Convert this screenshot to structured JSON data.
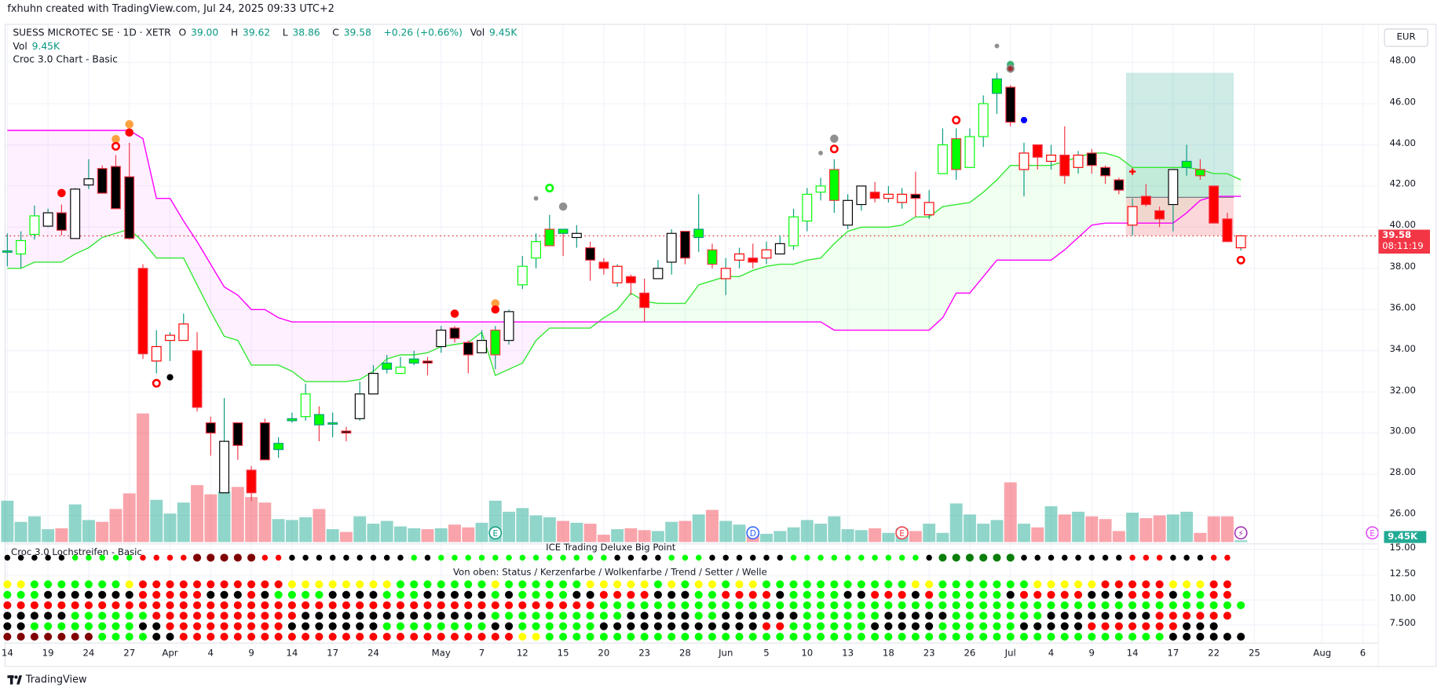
{
  "credit": "fxhuhn created with TradingView.com, Jul 24, 2025 09:33 UTC+2",
  "legend": {
    "symbol": "SUESS MICROTEC SE · 1D · XETR",
    "o_label": "O",
    "o": "39.00",
    "h_label": "H",
    "h": "39.62",
    "l_label": "L",
    "l": "38.86",
    "c_label": "C",
    "c": "39.58",
    "change": "+0.26 (+0.66%)",
    "vol_label": "Vol",
    "vol": "9.45K",
    "vol_row_label": "Vol",
    "vol_row_value": "9.45K",
    "indicator": "Croc 3.0 Chart - Basic"
  },
  "currency": "EUR",
  "current_price": {
    "price": "39.58",
    "countdown": "08:11:19",
    "value": 39.58
  },
  "volume_label": "9.45K",
  "price_axis": [
    "48.00",
    "46.00",
    "44.00",
    "42.00",
    "40.00",
    "38.00",
    "36.00",
    "34.00",
    "32.00",
    "30.00",
    "28.00",
    "26.00"
  ],
  "pane_axis": [
    "15.00",
    "12.50",
    "10.00",
    "7.500"
  ],
  "pane": {
    "title_left": "Croc 3.0 Lochstreifen - Basic",
    "title_center": "ICE Trading Deluxe Big Point",
    "subtitle": "Von oben: Status / Kerzenfarbe / Wolkenfarbe / Trend / Setter / Welle"
  },
  "footer": {
    "brand": "TradingView"
  },
  "colors": {
    "up": "#089981",
    "down": "#f23645",
    "lime": "#00ff00",
    "red": "#ff0000",
    "magenta": "#ff00ff",
    "yellow": "#ffff00",
    "darkred": "#800000",
    "darkgreen": "#0a7d0a",
    "black": "#000000"
  },
  "chart_data": {
    "type": "candlestick",
    "ylim": [
      25.5,
      49
    ],
    "x_labels": [
      {
        "label": "14",
        "i": 0
      },
      {
        "label": "19",
        "i": 3
      },
      {
        "label": "24",
        "i": 6
      },
      {
        "label": "27",
        "i": 9
      },
      {
        "label": "Apr",
        "i": 12
      },
      {
        "label": "4",
        "i": 15
      },
      {
        "label": "9",
        "i": 18
      },
      {
        "label": "14",
        "i": 21
      },
      {
        "label": "17",
        "i": 24
      },
      {
        "label": "24",
        "i": 27
      },
      {
        "label": "May",
        "i": 32
      },
      {
        "label": "7",
        "i": 35
      },
      {
        "label": "12",
        "i": 38
      },
      {
        "label": "15",
        "i": 41
      },
      {
        "label": "20",
        "i": 44
      },
      {
        "label": "23",
        "i": 47
      },
      {
        "label": "28",
        "i": 50
      },
      {
        "label": "Jun",
        "i": 53
      },
      {
        "label": "5",
        "i": 56
      },
      {
        "label": "10",
        "i": 59
      },
      {
        "label": "13",
        "i": 62
      },
      {
        "label": "18",
        "i": 65
      },
      {
        "label": "23",
        "i": 68
      },
      {
        "label": "26",
        "i": 71
      },
      {
        "label": "Jul",
        "i": 74
      },
      {
        "label": "4",
        "i": 77
      },
      {
        "label": "9",
        "i": 80
      },
      {
        "label": "14",
        "i": 83
      },
      {
        "label": "17",
        "i": 86
      },
      {
        "label": "22",
        "i": 89
      },
      {
        "label": "25",
        "i": 92
      },
      {
        "label": "Aug",
        "i": 97
      },
      {
        "label": "6",
        "i": 100
      }
    ],
    "candles_ohlc_style": [
      [
        38.8,
        39.7,
        38.1,
        38.85,
        "gf"
      ],
      [
        38.7,
        39.8,
        38.0,
        39.35,
        "gh"
      ],
      [
        39.65,
        41.05,
        39.4,
        40.55,
        "gh"
      ],
      [
        40.05,
        40.9,
        40.0,
        40.7,
        "wh"
      ],
      [
        40.7,
        41.1,
        39.6,
        39.85,
        "bk"
      ],
      [
        39.45,
        41.9,
        39.45,
        41.85,
        "wh"
      ],
      [
        42.05,
        43.3,
        41.85,
        42.35,
        "wh"
      ],
      [
        42.85,
        43.0,
        41.65,
        41.65,
        "bk"
      ],
      [
        42.95,
        43.5,
        40.9,
        40.9,
        "bk"
      ],
      [
        42.45,
        44.1,
        39.4,
        39.45,
        "bk"
      ],
      [
        38.0,
        38.2,
        33.6,
        33.85,
        "rf"
      ],
      [
        33.5,
        35.0,
        32.9,
        34.2,
        "rh"
      ],
      [
        34.5,
        34.9,
        33.5,
        34.75,
        "rh"
      ],
      [
        34.5,
        35.8,
        34.5,
        35.3,
        "rh"
      ],
      [
        34.0,
        34.9,
        31.05,
        31.25,
        "rf"
      ],
      [
        30.5,
        30.8,
        28.9,
        30.0,
        "bk"
      ],
      [
        27.1,
        31.7,
        27.1,
        29.6,
        "wh"
      ],
      [
        30.5,
        30.5,
        28.7,
        29.4,
        "bk"
      ],
      [
        28.2,
        28.4,
        26.7,
        27.1,
        "rf"
      ],
      [
        30.5,
        30.7,
        28.7,
        28.7,
        "bk"
      ],
      [
        29.2,
        29.8,
        28.8,
        29.5,
        "gf"
      ],
      [
        30.6,
        31.0,
        30.5,
        30.7,
        "gf"
      ],
      [
        30.8,
        32.4,
        30.6,
        31.9,
        "gh"
      ],
      [
        30.9,
        31.3,
        29.6,
        30.4,
        "gf"
      ],
      [
        30.45,
        31.0,
        29.8,
        30.5,
        "gf"
      ],
      [
        30.1,
        30.3,
        29.6,
        30.0,
        "bk"
      ],
      [
        30.7,
        32.5,
        30.6,
        31.9,
        "wh"
      ],
      [
        31.9,
        33.3,
        31.9,
        32.9,
        "wh"
      ],
      [
        33.1,
        33.8,
        32.9,
        33.4,
        "gf"
      ],
      [
        32.9,
        33.7,
        32.9,
        33.2,
        "gh"
      ],
      [
        33.4,
        34.0,
        33.3,
        33.6,
        "gf"
      ],
      [
        33.5,
        33.7,
        32.8,
        33.4,
        "bk"
      ],
      [
        34.2,
        35.2,
        33.9,
        35.0,
        "wh"
      ],
      [
        35.1,
        35.2,
        34.4,
        34.6,
        "bk"
      ],
      [
        34.4,
        34.5,
        32.9,
        33.8,
        "bk"
      ],
      [
        33.9,
        35.0,
        33.9,
        34.5,
        "wh"
      ],
      [
        33.8,
        35.2,
        33.1,
        35.0,
        "gfr"
      ],
      [
        34.5,
        36.0,
        34.3,
        35.9,
        "wh"
      ],
      [
        37.2,
        38.6,
        37.0,
        38.1,
        "gh"
      ],
      [
        38.5,
        39.7,
        38.0,
        39.3,
        "gh"
      ],
      [
        39.1,
        40.6,
        39.1,
        39.9,
        "gfr"
      ],
      [
        39.9,
        39.9,
        38.6,
        39.7,
        "gf"
      ],
      [
        39.5,
        40.1,
        39.0,
        39.7,
        "wh"
      ],
      [
        39.0,
        39.3,
        37.4,
        38.4,
        "bk"
      ],
      [
        38.3,
        38.5,
        37.7,
        38.0,
        "rf"
      ],
      [
        37.3,
        38.2,
        37.1,
        38.1,
        "rh"
      ],
      [
        37.6,
        37.7,
        36.7,
        37.3,
        "rf"
      ],
      [
        36.8,
        37.5,
        35.4,
        36.1,
        "rf"
      ],
      [
        37.5,
        38.4,
        37.5,
        38.0,
        "wh"
      ],
      [
        38.3,
        39.9,
        37.7,
        39.7,
        "wh"
      ],
      [
        39.8,
        39.8,
        38.2,
        38.5,
        "bk"
      ],
      [
        39.5,
        41.6,
        38.8,
        39.9,
        "gf"
      ],
      [
        38.9,
        39.2,
        38.0,
        38.2,
        "gfr"
      ],
      [
        37.5,
        38.5,
        36.7,
        38.0,
        "rh"
      ],
      [
        38.4,
        39.0,
        38.0,
        38.7,
        "rh"
      ],
      [
        38.5,
        39.2,
        38.0,
        38.3,
        "rf"
      ],
      [
        38.5,
        39.3,
        38.2,
        38.9,
        "rh"
      ],
      [
        38.7,
        39.6,
        38.7,
        39.2,
        "wh"
      ],
      [
        39.1,
        40.9,
        38.9,
        40.5,
        "gh"
      ],
      [
        40.3,
        41.9,
        39.8,
        41.6,
        "gh"
      ],
      [
        41.7,
        42.4,
        41.3,
        42.0,
        "gh"
      ],
      [
        41.3,
        43.3,
        40.7,
        42.8,
        "gfr"
      ],
      [
        40.1,
        41.6,
        39.9,
        41.3,
        "wh"
      ],
      [
        41.1,
        42.0,
        40.8,
        42.0,
        "wh"
      ],
      [
        41.7,
        42.2,
        41.2,
        41.4,
        "rf"
      ],
      [
        41.4,
        42.0,
        41.2,
        41.6,
        "rh"
      ],
      [
        41.2,
        41.9,
        40.9,
        41.6,
        "rh"
      ],
      [
        41.6,
        42.7,
        40.5,
        41.4,
        "bk"
      ],
      [
        40.6,
        41.8,
        40.4,
        41.2,
        "rh"
      ],
      [
        42.6,
        44.8,
        42.6,
        44.0,
        "gh"
      ],
      [
        42.8,
        44.8,
        42.3,
        44.3,
        "gfr"
      ],
      [
        42.9,
        44.8,
        42.9,
        44.4,
        "gh"
      ],
      [
        44.4,
        46.4,
        43.9,
        46.0,
        "gh"
      ],
      [
        46.5,
        47.5,
        45.5,
        47.2,
        "gf"
      ],
      [
        46.8,
        46.9,
        44.9,
        45.1,
        "bk"
      ],
      [
        42.8,
        44.1,
        41.5,
        43.6,
        "rh"
      ],
      [
        44.0,
        44.0,
        42.8,
        43.4,
        "rf"
      ],
      [
        43.2,
        44.0,
        42.8,
        43.5,
        "rh"
      ],
      [
        43.5,
        44.9,
        42.1,
        42.5,
        "rf"
      ],
      [
        42.9,
        43.7,
        42.6,
        43.5,
        "rh"
      ],
      [
        43.6,
        43.8,
        42.6,
        43.0,
        "bk"
      ],
      [
        42.9,
        43.0,
        42.1,
        42.5,
        "bk"
      ],
      [
        42.3,
        42.4,
        41.6,
        41.8,
        "bk"
      ],
      [
        40.1,
        41.4,
        39.6,
        41.0,
        "rh"
      ],
      [
        41.5,
        42.1,
        41.0,
        41.1,
        "rf"
      ],
      [
        40.8,
        41.0,
        40.0,
        40.4,
        "rf"
      ],
      [
        41.1,
        42.8,
        39.8,
        42.8,
        "wh"
      ],
      [
        42.9,
        44.0,
        42.5,
        43.2,
        "gf"
      ],
      [
        42.8,
        43.3,
        42.3,
        42.5,
        "gfr"
      ],
      [
        42.0,
        42.0,
        40.2,
        40.2,
        "rf"
      ],
      [
        40.4,
        40.7,
        39.3,
        39.3,
        "rf"
      ],
      [
        39.0,
        39.62,
        38.86,
        39.58,
        "rh"
      ]
    ],
    "volume_k": [
      225,
      110,
      140,
      70,
      75,
      205,
      120,
      110,
      180,
      265,
      700,
      230,
      155,
      215,
      310,
      260,
      275,
      300,
      245,
      215,
      125,
      120,
      135,
      180,
      70,
      55,
      140,
      100,
      115,
      85,
      75,
      70,
      75,
      95,
      80,
      105,
      225,
      165,
      185,
      145,
      135,
      115,
      105,
      100,
      40,
      70,
      75,
      65,
      60,
      110,
      115,
      150,
      175,
      115,
      95,
      65,
      45,
      60,
      80,
      120,
      100,
      140,
      70,
      65,
      75,
      50,
      75,
      60,
      100,
      50,
      210,
      150,
      100,
      120,
      325,
      100,
      80,
      195,
      150,
      165,
      140,
      125,
      60,
      160,
      130,
      145,
      150,
      165,
      50,
      140,
      140,
      9.45
    ],
    "cloud_lower_green": [
      38.0,
      38.0,
      38.3,
      38.3,
      38.3,
      38.7,
      39.0,
      39.5,
      39.7,
      39.9,
      39.3,
      38.5,
      38.5,
      38.5,
      37.2,
      35.9,
      34.7,
      34.5,
      33.3,
      33.3,
      33.3,
      33.0,
      32.5,
      32.5,
      32.5,
      32.5,
      32.6,
      33.0,
      33.6,
      33.8,
      33.8,
      33.9,
      34.2,
      34.3,
      34.4,
      34.9,
      32.8,
      33.1,
      33.4,
      34.5,
      35.1,
      35.1,
      35.1,
      35.1,
      35.6,
      36.0,
      36.8,
      36.4,
      36.3,
      36.3,
      36.3,
      37.2,
      37.4,
      37.6,
      37.6,
      37.9,
      38.1,
      38.2,
      38.2,
      38.4,
      38.5,
      39.2,
      39.8,
      40.0,
      40.0,
      40.0,
      40.1,
      40.5,
      40.5,
      41.0,
      41.1,
      41.2,
      41.7,
      42.3,
      43.0,
      43.0,
      43.0,
      43.0,
      43.2,
      43.4,
      43.6,
      43.6,
      43.4,
      42.9,
      42.9,
      42.9,
      42.9,
      42.9,
      42.8,
      42.6,
      42.6,
      42.3
    ],
    "cloud_upper_magenta": [
      44.7,
      44.7,
      44.7,
      44.7,
      44.7,
      44.7,
      44.7,
      44.7,
      44.7,
      44.7,
      44.3,
      41.4,
      41.4,
      40.3,
      39.3,
      38.2,
      37.1,
      36.7,
      36.0,
      36.0,
      35.6,
      35.4,
      35.4,
      35.4,
      35.4,
      35.4,
      35.4,
      35.4,
      35.4,
      35.4,
      35.4,
      35.4,
      35.4,
      35.4,
      35.4,
      35.4,
      35.4,
      35.4,
      35.4,
      35.4,
      35.4,
      35.4,
      35.4,
      35.4,
      35.4,
      35.4,
      35.4,
      35.4,
      35.4,
      35.4,
      35.4,
      35.4,
      35.4,
      35.4,
      35.4,
      35.4,
      35.4,
      35.4,
      35.4,
      35.4,
      35.4,
      35.0,
      35.0,
      35.0,
      35.0,
      35.0,
      35.0,
      35.0,
      35.0,
      35.6,
      36.8,
      36.8,
      37.6,
      38.4,
      38.4,
      38.4,
      38.4,
      38.4,
      38.9,
      39.5,
      40.1,
      40.2,
      40.2,
      40.2,
      40.2,
      40.2,
      40.2,
      40.7,
      41.3,
      41.5,
      41.5,
      41.5
    ],
    "markers": [
      {
        "i": 4,
        "p": 41.66,
        "kind": "dot",
        "color": "#ff0000",
        "r": 4.5
      },
      {
        "i": 8,
        "p": 44.28,
        "kind": "dot",
        "color": "#ffa040",
        "r": 4.5
      },
      {
        "i": 8,
        "p": 43.93,
        "kind": "ring",
        "color": "#ff0000",
        "r": 3.6
      },
      {
        "i": 9,
        "p": 45.0,
        "kind": "dot",
        "color": "#ffa040",
        "r": 4.5
      },
      {
        "i": 9,
        "p": 44.6,
        "kind": "dot",
        "color": "#ff0000",
        "r": 4.5
      },
      {
        "i": 11,
        "p": 32.42,
        "kind": "ring",
        "color": "#ff0000",
        "r": 3.6
      },
      {
        "i": 12,
        "p": 32.71,
        "kind": "dot",
        "color": "#000000",
        "r": 3.5
      },
      {
        "i": 33,
        "p": 35.8,
        "kind": "dot",
        "color": "#ff0000",
        "r": 4.5
      },
      {
        "i": 36,
        "p": 36.3,
        "kind": "dot",
        "color": "#ffa040",
        "r": 4.5
      },
      {
        "i": 36,
        "p": 36.0,
        "kind": "dot",
        "color": "#ff0000",
        "r": 4.5
      },
      {
        "i": 39,
        "p": 41.4,
        "kind": "dot",
        "color": "#909090",
        "r": 2.5
      },
      {
        "i": 40,
        "p": 41.9,
        "kind": "ring",
        "color": "#00ff00",
        "r": 3.6
      },
      {
        "i": 41,
        "p": 41.0,
        "kind": "dot",
        "color": "#909090",
        "r": 4.5
      },
      {
        "i": 60,
        "p": 43.6,
        "kind": "dot",
        "color": "#909090",
        "r": 2.5
      },
      {
        "i": 61,
        "p": 44.3,
        "kind": "dot",
        "color": "#909090",
        "r": 4.5
      },
      {
        "i": 61,
        "p": 43.8,
        "kind": "ring",
        "color": "#ff0000",
        "r": 3.6
      },
      {
        "i": 70,
        "p": 45.2,
        "kind": "ring",
        "color": "#ff0000",
        "r": 3.6
      },
      {
        "i": 73,
        "p": 48.8,
        "kind": "dot",
        "color": "#909090",
        "r": 2.5
      },
      {
        "i": 74,
        "p": 47.9,
        "kind": "dot",
        "color": "#3cb371",
        "r": 4
      },
      {
        "i": 74,
        "p": 47.7,
        "kind": "dot",
        "color": "#909090",
        "r": 4.5
      },
      {
        "i": 74,
        "p": 47.7,
        "kind": "dot",
        "color": "#a03030",
        "r": 2.8
      },
      {
        "i": 75,
        "p": 45.2,
        "kind": "dot",
        "color": "#0000ff",
        "r": 3.5
      },
      {
        "i": 83,
        "p": 42.7,
        "kind": "plus",
        "color": "#ff0000",
        "r": 3.5
      },
      {
        "i": 91,
        "p": 38.4,
        "kind": "ring",
        "color": "#ff0000",
        "r": 3.6
      }
    ],
    "position": {
      "from_i": 83,
      "to_i": 90,
      "target": 47.5,
      "entry": 41.45,
      "stop": 39.6
    },
    "events": [
      {
        "i": 36,
        "label": "E",
        "color": "#089981"
      },
      {
        "i": 55,
        "label": "D",
        "color": "#2962ff"
      },
      {
        "i": 66,
        "label": "E",
        "color": "#f23645"
      },
      {
        "i": 91,
        "label": "⚡",
        "color": "#9c27b0"
      },
      {
        "i": 100.7,
        "label": "E",
        "color": "#e040fb"
      }
    ],
    "dot_rows": [
      "kkkkkgggggrrrrdddddrrkkkkkkkkkgkgggggggggggggkkkkgggkkkkkkggggggggggkGGGGGGkkkkkkkkrrrkkkrr",
      "yygggggggyrrrrrrrrrrryyyyyyyygggggggyggggggyyyyygygyygyygggggggggggyygggggggyyyyyrrrrryyyrr",
      "gggkkkkkkkrrrrrkkkrkggggkkkkgggkkkkkgkggggkkrrrrkkkggrrrrkggggkkrrrkrgggggkrrrrrkkkrrrkggrr",
      "rrrrrrrrrrrrrrrrrrrrrrrrrrrrrrrrrrrrrrrrrrrrgggggggggggggggggggggggggggggggggggggggggggggggg",
      "kkkkkggggggrrrrrrrrrrrkkkkkkkkkkkkkkggggggggggkkkkkggkkkkkkggggggkkkkkgggggggkkkkkkkkrrrrrr",
      "kkggggggggkkrrrrrrrrrkkkkkkkggggggggkkggggggkkkkkkkkkkkkrrggggggkkkkkggggggkkkkkrrrrrrrkkk",
      "dddddddggggkkrrrrrrrrrrrrrrrrrrrrrrrrryyggggggggggggggggggggggggggggggggggggggggggggggkkkkkk"
    ]
  }
}
